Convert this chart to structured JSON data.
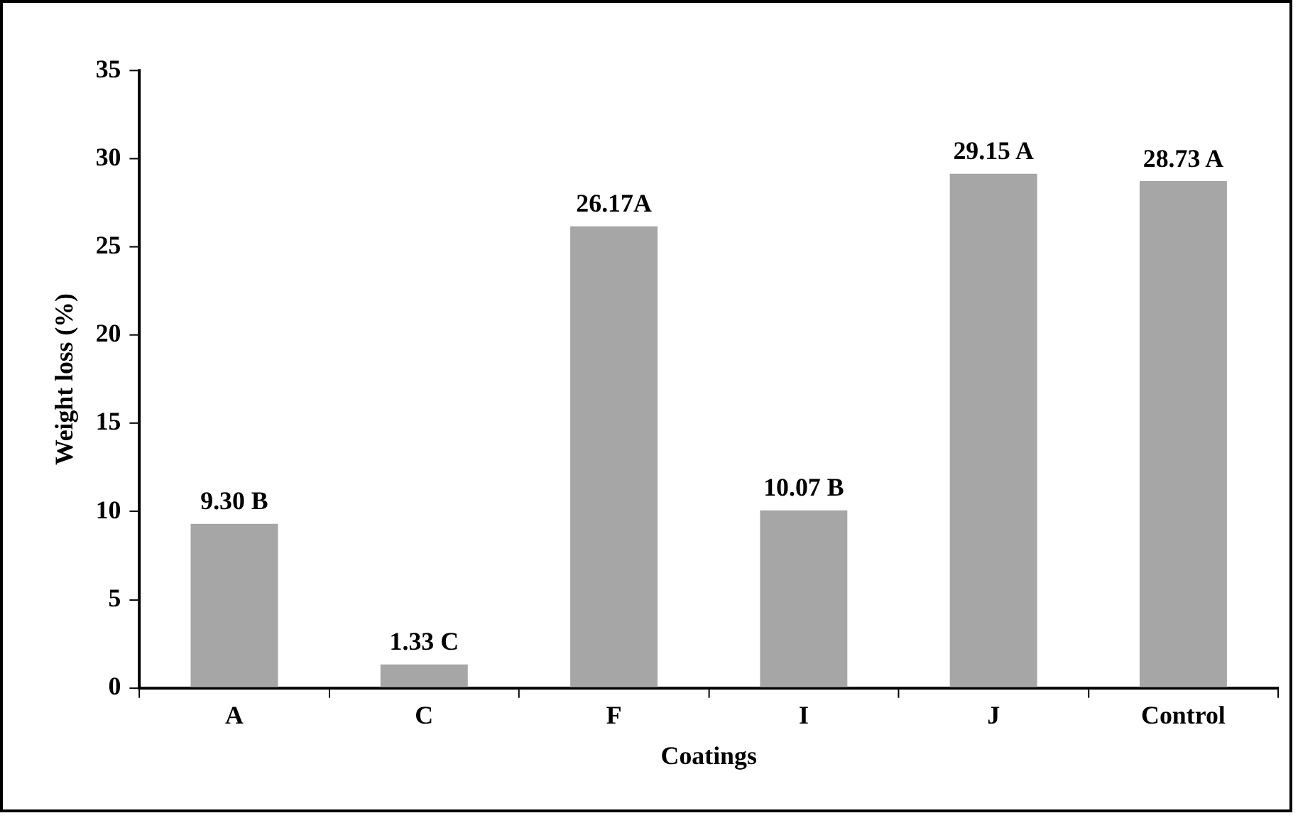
{
  "chart_data": {
    "type": "bar",
    "xlabel": "Coatings",
    "ylabel": "Weight loss (%)",
    "categories": [
      "A",
      "C",
      "F",
      "I",
      "J",
      "Control"
    ],
    "values": [
      9.3,
      1.33,
      26.17,
      10.07,
      29.15,
      28.73
    ],
    "value_labels": [
      "9.30 B",
      "1.33 C",
      "26.17A",
      "10.07 B",
      "29.15 A",
      "28.73 A"
    ],
    "color": "#a6a6a6",
    "ylim": [
      0,
      35
    ],
    "yticks": [
      0,
      5,
      10,
      15,
      20,
      25,
      30,
      35
    ],
    "grid": false,
    "legend": false
  }
}
